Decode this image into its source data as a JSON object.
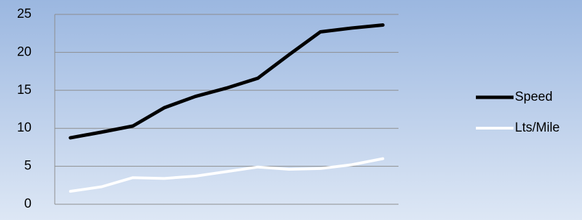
{
  "chart_data": {
    "type": "line",
    "categories": [
      null,
      null,
      null,
      null,
      null,
      null,
      null,
      null,
      null,
      null,
      null
    ],
    "series": [
      {
        "name": "Speed",
        "color": "#000000",
        "values": [
          8.75,
          9.5,
          10.3,
          12.7,
          14.2,
          15.3,
          16.6,
          19.7,
          22.7,
          23.2,
          23.6
        ]
      },
      {
        "name": "Lts/Mile",
        "color": "#ffffff",
        "values": [
          1.7,
          2.3,
          3.5,
          3.4,
          3.7,
          4.3,
          4.9,
          4.6,
          4.7,
          5.2,
          6.0
        ]
      }
    ],
    "ylim": [
      0,
      25
    ],
    "yticks": [
      0,
      5,
      10,
      15,
      20,
      25
    ],
    "grid": true,
    "legend": "right"
  }
}
